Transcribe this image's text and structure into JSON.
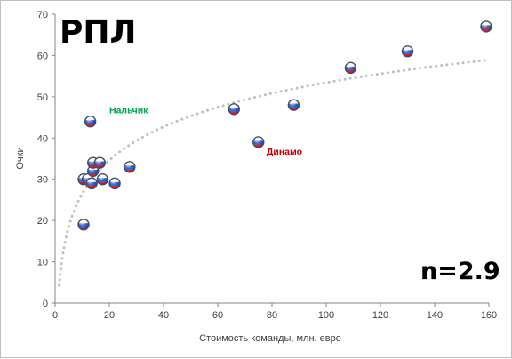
{
  "chart_data": {
    "type": "scatter",
    "title": "РПЛ",
    "xlabel": "Стоимость команды, млн. евро",
    "ylabel": "Очки",
    "xlim": [
      0,
      160
    ],
    "ylim": [
      0,
      70
    ],
    "xticks": [
      "0",
      "20",
      "40",
      "60",
      "80",
      "100",
      "120",
      "140",
      "160"
    ],
    "yticks": [
      "0",
      "10",
      "20",
      "30",
      "40",
      "50",
      "60",
      "70"
    ],
    "grid": false,
    "legend": "none",
    "stat_label": "n=2.9",
    "trendline": {
      "type": "logarithmic",
      "style": "dotted",
      "color": "#bfbfbf"
    },
    "points": [
      {
        "x": 10.5,
        "y": 19
      },
      {
        "x": 10.5,
        "y": 30
      },
      {
        "x": 12,
        "y": 30
      },
      {
        "x": 13,
        "y": 44
      },
      {
        "x": 13.5,
        "y": 29
      },
      {
        "x": 14,
        "y": 32
      },
      {
        "x": 14,
        "y": 34
      },
      {
        "x": 16.5,
        "y": 34
      },
      {
        "x": 17.5,
        "y": 30
      },
      {
        "x": 22,
        "y": 29
      },
      {
        "x": 27.5,
        "y": 33
      },
      {
        "x": 66,
        "y": 47
      },
      {
        "x": 75,
        "y": 39
      },
      {
        "x": 88,
        "y": 48
      },
      {
        "x": 109,
        "y": 57
      },
      {
        "x": 130,
        "y": 61
      },
      {
        "x": 159,
        "y": 67
      }
    ],
    "annotations": [
      {
        "text": "Нальчик",
        "x": 20,
        "y": 46,
        "color": "#00a550"
      },
      {
        "text": "Динамо",
        "x": 78,
        "y": 36,
        "color": "#c00000"
      }
    ]
  }
}
